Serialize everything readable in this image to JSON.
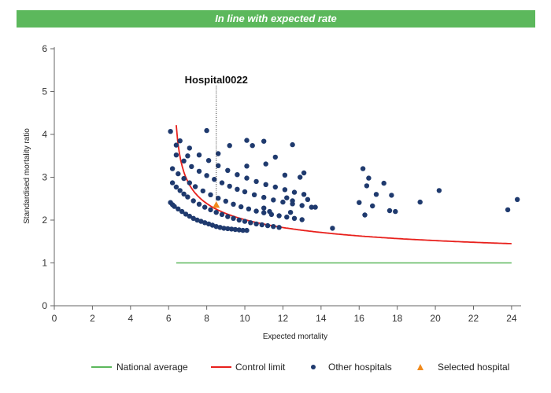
{
  "banner": {
    "text": "In line with expected rate",
    "color": "#5cb85c"
  },
  "chart_data": {
    "type": "scatter",
    "title": "",
    "xlabel": "Expected mortality",
    "ylabel": "Standardised mortality ratio",
    "xlim": [
      0,
      24.5
    ],
    "ylim": [
      0,
      6
    ],
    "xticks": [
      0,
      2,
      4,
      6,
      8,
      10,
      12,
      14,
      16,
      18,
      20,
      22,
      24
    ],
    "yticks": [
      0,
      1,
      2,
      3,
      4,
      5,
      6
    ],
    "grid": false,
    "legend_placement": "bottom",
    "colors": {
      "national_average": "#5cb85c",
      "control_limit": "#e8201c",
      "other_hospitals": "#1f3a6e",
      "selected_hospital": "#f08a1c"
    },
    "national_average": {
      "name": "National average",
      "y": 1,
      "x_range": [
        6.4,
        24
      ]
    },
    "control_limit": {
      "name": "Control limit",
      "x_start": 6.4,
      "x_end": 24
    },
    "selected_hospital": {
      "name": "Selected hospital",
      "label": "Hospital0022",
      "x": 8.5,
      "y": 2.35
    },
    "other_hospitals": {
      "name": "Other hospitals",
      "points": [
        [
          6.1,
          2.41
        ],
        [
          6.2,
          2.36
        ],
        [
          6.3,
          2.32
        ],
        [
          6.5,
          2.26
        ],
        [
          6.7,
          2.2
        ],
        [
          6.9,
          2.14
        ],
        [
          7.1,
          2.09
        ],
        [
          7.3,
          2.04
        ],
        [
          7.5,
          2.0
        ],
        [
          7.7,
          1.97
        ],
        [
          7.9,
          1.94
        ],
        [
          8.1,
          1.91
        ],
        [
          8.3,
          1.88
        ],
        [
          8.5,
          1.85
        ],
        [
          8.7,
          1.83
        ],
        [
          8.9,
          1.81
        ],
        [
          9.1,
          1.8
        ],
        [
          9.3,
          1.79
        ],
        [
          9.5,
          1.78
        ],
        [
          9.7,
          1.77
        ],
        [
          9.9,
          1.76
        ],
        [
          10.1,
          1.76
        ],
        [
          6.2,
          2.87
        ],
        [
          6.4,
          2.77
        ],
        [
          6.6,
          2.69
        ],
        [
          6.8,
          2.61
        ],
        [
          7.0,
          2.54
        ],
        [
          7.3,
          2.45
        ],
        [
          7.6,
          2.37
        ],
        [
          7.9,
          2.3
        ],
        [
          8.2,
          2.24
        ],
        [
          8.5,
          2.18
        ],
        [
          8.8,
          2.13
        ],
        [
          9.1,
          2.08
        ],
        [
          9.4,
          2.04
        ],
        [
          9.7,
          2.0
        ],
        [
          10.0,
          1.97
        ],
        [
          10.3,
          1.94
        ],
        [
          10.6,
          1.91
        ],
        [
          10.9,
          1.89
        ],
        [
          11.2,
          1.87
        ],
        [
          11.5,
          1.85
        ],
        [
          11.8,
          1.83
        ],
        [
          6.2,
          3.2
        ],
        [
          6.5,
          3.08
        ],
        [
          6.8,
          2.97
        ],
        [
          7.1,
          2.87
        ],
        [
          7.4,
          2.78
        ],
        [
          7.8,
          2.68
        ],
        [
          8.2,
          2.59
        ],
        [
          8.6,
          2.51
        ],
        [
          9.0,
          2.44
        ],
        [
          9.4,
          2.37
        ],
        [
          9.8,
          2.31
        ],
        [
          10.2,
          2.26
        ],
        [
          10.6,
          2.21
        ],
        [
          11.0,
          2.17
        ],
        [
          11.4,
          2.13
        ],
        [
          11.8,
          2.1
        ],
        [
          12.2,
          2.07
        ],
        [
          12.6,
          2.04
        ],
        [
          13.0,
          2.01
        ],
        [
          6.4,
          3.52
        ],
        [
          6.8,
          3.38
        ],
        [
          7.2,
          3.25
        ],
        [
          7.6,
          3.14
        ],
        [
          8.0,
          3.04
        ],
        [
          8.4,
          2.95
        ],
        [
          8.8,
          2.87
        ],
        [
          9.2,
          2.79
        ],
        [
          9.6,
          2.72
        ],
        [
          10.0,
          2.66
        ],
        [
          10.5,
          2.59
        ],
        [
          11.0,
          2.53
        ],
        [
          11.5,
          2.47
        ],
        [
          12.0,
          2.42
        ],
        [
          12.5,
          2.38
        ],
        [
          13.0,
          2.34
        ],
        [
          13.5,
          2.3
        ],
        [
          6.6,
          3.85
        ],
        [
          7.1,
          3.68
        ],
        [
          7.6,
          3.52
        ],
        [
          8.1,
          3.39
        ],
        [
          8.6,
          3.27
        ],
        [
          9.1,
          3.16
        ],
        [
          9.6,
          3.06
        ],
        [
          10.1,
          2.98
        ],
        [
          10.6,
          2.9
        ],
        [
          11.1,
          2.83
        ],
        [
          11.6,
          2.77
        ],
        [
          12.1,
          2.71
        ],
        [
          12.6,
          2.65
        ],
        [
          13.1,
          2.6
        ],
        [
          6.1,
          4.07
        ],
        [
          6.4,
          3.75
        ],
        [
          7.0,
          3.5
        ],
        [
          8.0,
          4.09
        ],
        [
          8.6,
          3.55
        ],
        [
          9.2,
          3.74
        ],
        [
          10.1,
          3.86
        ],
        [
          10.4,
          3.74
        ],
        [
          11.0,
          3.84
        ],
        [
          12.5,
          3.76
        ],
        [
          10.1,
          3.26
        ],
        [
          11.1,
          3.31
        ],
        [
          11.6,
          3.47
        ],
        [
          13.1,
          3.1
        ],
        [
          12.1,
          3.05
        ],
        [
          12.9,
          3.0
        ],
        [
          12.2,
          2.52
        ],
        [
          12.5,
          2.45
        ],
        [
          13.3,
          2.48
        ],
        [
          13.7,
          2.3
        ],
        [
          11.0,
          2.28
        ],
        [
          11.3,
          2.2
        ],
        [
          12.4,
          2.18
        ],
        [
          14.6,
          1.81
        ],
        [
          16.2,
          3.2
        ],
        [
          16.5,
          2.98
        ],
        [
          16.4,
          2.8
        ],
        [
          17.3,
          2.86
        ],
        [
          16.9,
          2.6
        ],
        [
          17.7,
          2.58
        ],
        [
          16.0,
          2.41
        ],
        [
          16.7,
          2.33
        ],
        [
          16.3,
          2.12
        ],
        [
          17.6,
          2.22
        ],
        [
          17.9,
          2.2
        ],
        [
          19.2,
          2.42
        ],
        [
          20.2,
          2.69
        ],
        [
          23.8,
          2.24
        ],
        [
          24.3,
          2.48
        ]
      ]
    }
  },
  "legend": {
    "national_average": "National average",
    "control_limit": "Control limit",
    "other_hospitals": "Other hospitals",
    "selected_hospital": "Selected hospital"
  }
}
